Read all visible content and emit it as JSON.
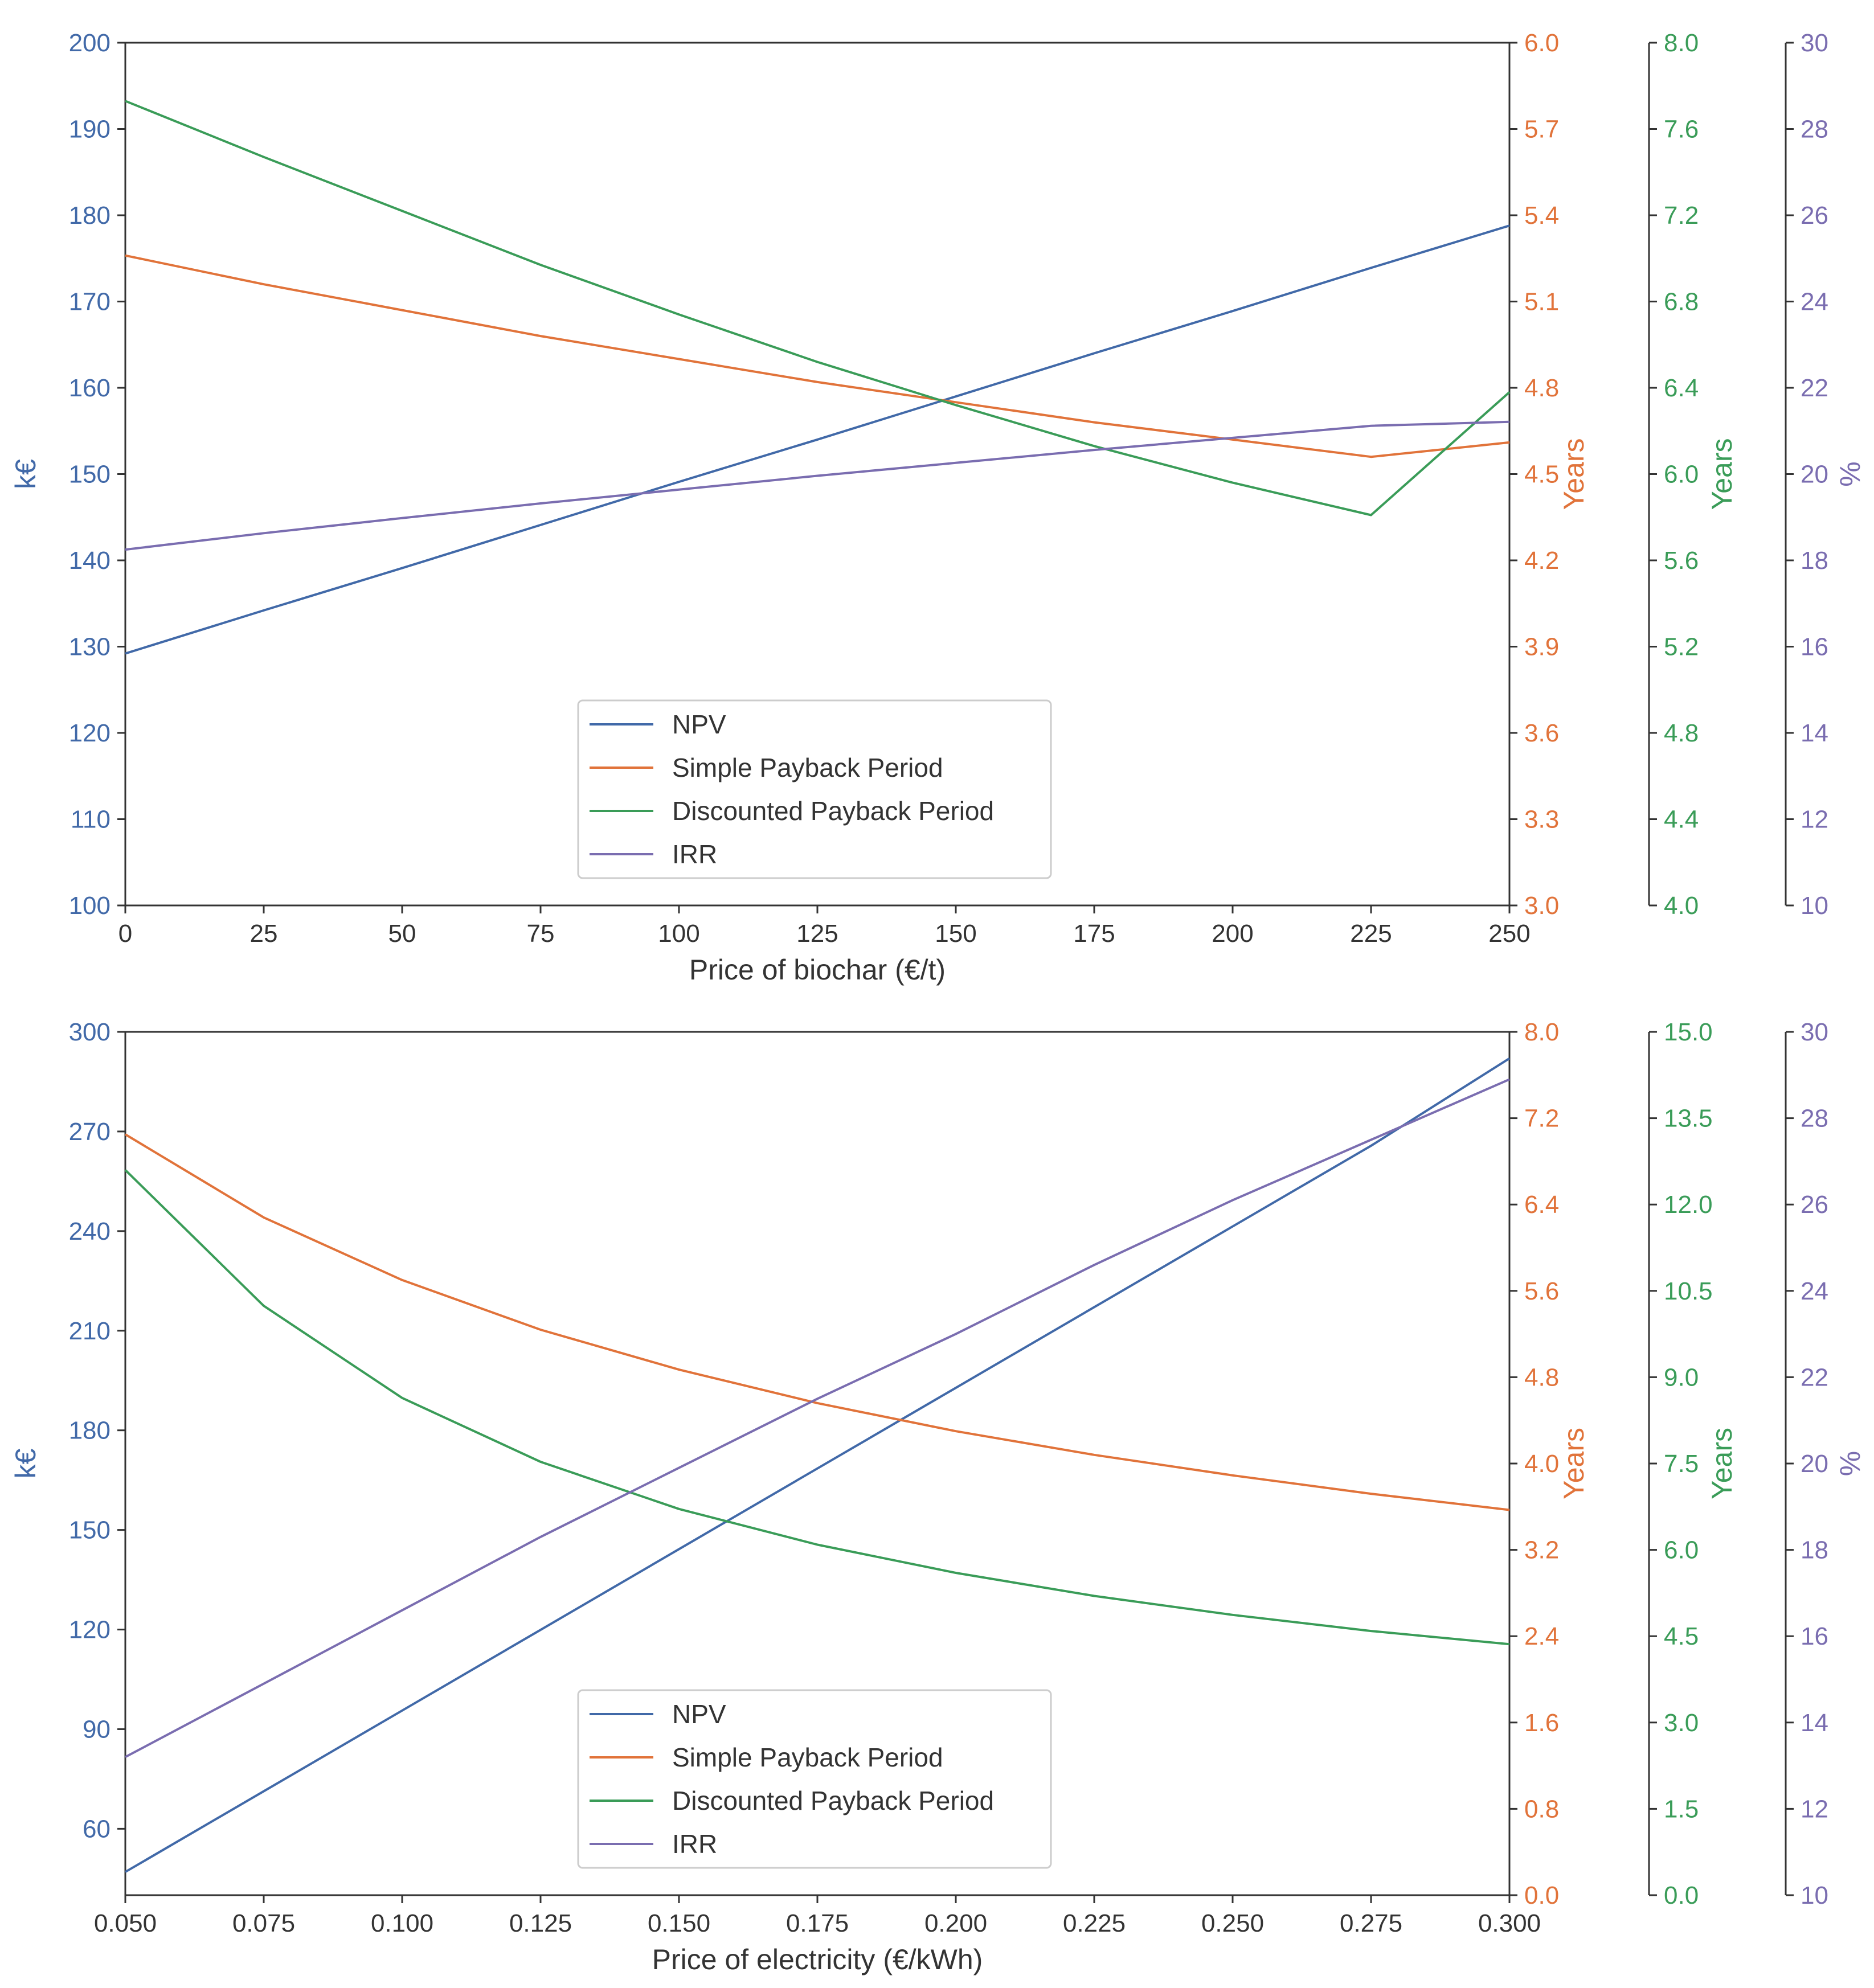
{
  "colors": {
    "npv": "#4169a8",
    "spp": "#e1733a",
    "dpp": "#3a9c58",
    "irr": "#7a6db0",
    "frame": "#333333",
    "text": "#333333"
  },
  "legend": [
    "NPV",
    "Simple Payback Period",
    "Discounted Payback Period",
    "IRR"
  ],
  "chart_data": [
    {
      "type": "line",
      "title": "",
      "xlabel": "Price of biochar (€/t)",
      "xlim": [
        0,
        250
      ],
      "xticks": [
        "0",
        "25",
        "50",
        "75",
        "100",
        "125",
        "150",
        "175",
        "200",
        "225",
        "250"
      ],
      "x": [
        0,
        25,
        50,
        75,
        100,
        125,
        150,
        175,
        200,
        225,
        250
      ],
      "legend_position": "bottom-center",
      "axes": [
        {
          "label": "k€",
          "side": "left",
          "color": "#4169a8",
          "ylim": [
            100,
            200
          ],
          "ticks": [
            "100",
            "110",
            "120",
            "130",
            "140",
            "150",
            "160",
            "170",
            "180",
            "190",
            "200"
          ]
        },
        {
          "label": "Years",
          "side": "right",
          "color": "#e1733a",
          "ylim": [
            3.0,
            6.0
          ],
          "ticks": [
            "3.0",
            "3.3",
            "3.6",
            "3.9",
            "4.2",
            "4.5",
            "4.8",
            "5.1",
            "5.4",
            "5.7",
            "6.0"
          ]
        },
        {
          "label": "Years",
          "side": "right-offset",
          "color": "#3a9c58",
          "ylim": [
            4.0,
            8.0
          ],
          "ticks": [
            "4.0",
            "4.4",
            "4.8",
            "5.2",
            "5.6",
            "6.0",
            "6.4",
            "6.8",
            "7.2",
            "7.6",
            "8.0"
          ]
        },
        {
          "label": "%",
          "side": "right-offset-2",
          "color": "#7a6db0",
          "ylim": [
            10,
            30
          ],
          "ticks": [
            "10",
            "12",
            "14",
            "16",
            "18",
            "20",
            "22",
            "24",
            "26",
            "28",
            "30"
          ]
        }
      ],
      "series": [
        {
          "name": "NPV",
          "axis": 0,
          "values": [
            129.2,
            134.2,
            139.1,
            144.1,
            149.1,
            154.0,
            159.0,
            164.0,
            168.9,
            173.9,
            178.8
          ]
        },
        {
          "name": "Simple Payback Period",
          "axis": 1,
          "values": [
            5.26,
            5.16,
            5.07,
            4.98,
            4.9,
            4.82,
            4.75,
            4.68,
            4.62,
            4.56,
            4.61
          ]
        },
        {
          "name": "Discounted Payback Period",
          "axis": 2,
          "values": [
            7.73,
            7.47,
            7.22,
            6.97,
            6.74,
            6.52,
            6.32,
            6.13,
            5.96,
            5.81,
            6.38
          ]
        },
        {
          "name": "IRR",
          "axis": 3,
          "values": [
            18.25,
            18.63,
            18.98,
            19.32,
            19.64,
            19.96,
            20.26,
            20.56,
            20.84,
            21.12,
            21.21
          ]
        }
      ]
    },
    {
      "type": "line",
      "title": "",
      "xlabel": "Price of electricity (€/kWh)",
      "xlim": [
        0.05,
        0.3
      ],
      "xticks": [
        "0.050",
        "0.075",
        "0.100",
        "0.125",
        "0.150",
        "0.175",
        "0.200",
        "0.225",
        "0.250",
        "0.275",
        "0.300"
      ],
      "x": [
        0.05,
        0.075,
        0.1,
        0.125,
        0.15,
        0.175,
        0.2,
        0.225,
        0.25,
        0.275,
        0.3
      ],
      "legend_position": "bottom-center",
      "axes": [
        {
          "label": "k€",
          "side": "left",
          "color": "#4169a8",
          "ylim": [
            40,
            300
          ],
          "ticks": [
            "60",
            "90",
            "120",
            "150",
            "180",
            "210",
            "240",
            "270",
            "300"
          ],
          "tick_values": [
            60,
            90,
            120,
            150,
            180,
            210,
            240,
            270,
            300
          ]
        },
        {
          "label": "Years",
          "side": "right",
          "color": "#e1733a",
          "ylim": [
            0.0,
            8.0
          ],
          "ticks": [
            "0.0",
            "0.8",
            "1.6",
            "2.4",
            "3.2",
            "4.0",
            "4.8",
            "5.6",
            "6.4",
            "7.2",
            "8.0"
          ]
        },
        {
          "label": "Years",
          "side": "right-offset",
          "color": "#3a9c58",
          "ylim": [
            0.0,
            15.0
          ],
          "ticks": [
            "0.0",
            "1.5",
            "3.0",
            "4.5",
            "6.0",
            "7.5",
            "9.0",
            "10.5",
            "12.0",
            "13.5",
            "15.0"
          ]
        },
        {
          "label": "%",
          "side": "right-offset-2",
          "color": "#7a6db0",
          "ylim": [
            10,
            30
          ],
          "ticks": [
            "10",
            "12",
            "14",
            "16",
            "18",
            "20",
            "22",
            "24",
            "26",
            "28",
            "30"
          ]
        }
      ],
      "series": [
        {
          "name": "NPV",
          "axis": 0,
          "values": [
            47,
            71.3,
            95.6,
            119.9,
            144.2,
            168.5,
            192.8,
            217.1,
            241.4,
            265.7,
            292
          ]
        },
        {
          "name": "Simple Payback Period",
          "axis": 1,
          "values": [
            7.05,
            6.28,
            5.7,
            5.24,
            4.87,
            4.56,
            4.3,
            4.08,
            3.89,
            3.72,
            3.57
          ]
        },
        {
          "name": "Discounted Payback Period",
          "axis": 2,
          "values": [
            12.6,
            10.24,
            8.64,
            7.53,
            6.71,
            6.09,
            5.6,
            5.2,
            4.87,
            4.59,
            4.36
          ]
        },
        {
          "name": "IRR",
          "axis": 3,
          "values": [
            13.2,
            14.9,
            16.6,
            18.3,
            19.9,
            21.5,
            23.0,
            24.6,
            26.1,
            27.5,
            28.9
          ]
        }
      ]
    }
  ]
}
